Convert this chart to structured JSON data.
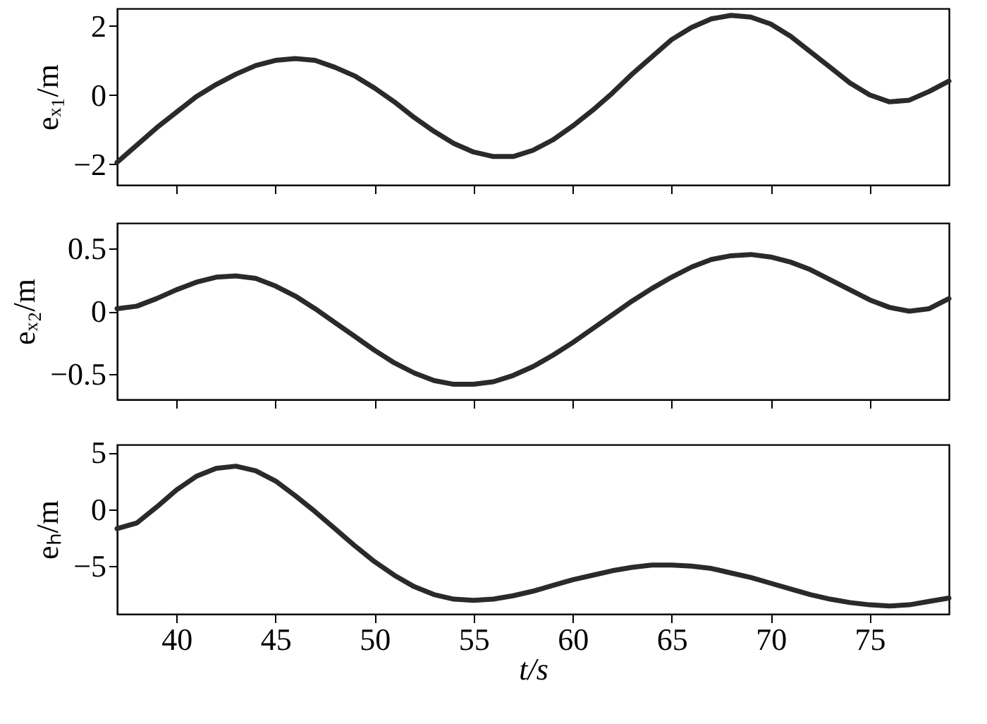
{
  "chart_data": [
    {
      "type": "line",
      "ylabel": "eₓ₁/m",
      "xlim": [
        37,
        79
      ],
      "xticks": [
        40,
        45,
        50,
        55,
        60,
        65,
        70,
        75
      ],
      "ylim": [
        -2.6,
        2.5
      ],
      "yticks": [
        -2,
        0,
        2
      ],
      "tick_labels": "y",
      "grid": false,
      "marker": "none",
      "line_style": "solid",
      "x": [
        37,
        38,
        39,
        40,
        41,
        42,
        43,
        44,
        45,
        46,
        47,
        48,
        49,
        50,
        51,
        52,
        53,
        54,
        55,
        56,
        57,
        58,
        59,
        60,
        61,
        62,
        63,
        64,
        65,
        66,
        67,
        68,
        69,
        70,
        71,
        72,
        73,
        74,
        75,
        76,
        77,
        78,
        79
      ],
      "series": [
        {
          "color": "#2a2a2a",
          "values": [
            -1.95,
            -1.45,
            -0.95,
            -0.5,
            -0.05,
            0.3,
            0.6,
            0.85,
            1.0,
            1.05,
            1.0,
            0.8,
            0.55,
            0.2,
            -0.2,
            -0.65,
            -1.05,
            -1.4,
            -1.65,
            -1.78,
            -1.78,
            -1.6,
            -1.3,
            -0.9,
            -0.45,
            0.05,
            0.6,
            1.1,
            1.6,
            1.95,
            2.2,
            2.3,
            2.25,
            2.05,
            1.7,
            1.25,
            0.8,
            0.35,
            0.0,
            -0.2,
            -0.15,
            0.1,
            0.4
          ]
        }
      ]
    },
    {
      "type": "line",
      "ylabel": "eₓ₂/m",
      "xlim": [
        37,
        79
      ],
      "xticks": [
        40,
        45,
        50,
        55,
        60,
        65,
        70,
        75
      ],
      "ylim": [
        -0.7,
        0.7
      ],
      "yticks": [
        -0.5,
        0,
        0.5
      ],
      "tick_labels": "y",
      "grid": false,
      "marker": "none",
      "line_style": "solid",
      "x": [
        37,
        38,
        39,
        40,
        41,
        42,
        43,
        44,
        45,
        46,
        47,
        48,
        49,
        50,
        51,
        52,
        53,
        54,
        55,
        56,
        57,
        58,
        59,
        60,
        61,
        62,
        63,
        64,
        65,
        66,
        67,
        68,
        69,
        70,
        71,
        72,
        73,
        74,
        75,
        76,
        77,
        78,
        79
      ],
      "series": [
        {
          "color": "#2a2a2a",
          "values": [
            0.02,
            0.04,
            0.1,
            0.17,
            0.23,
            0.27,
            0.28,
            0.26,
            0.2,
            0.12,
            0.02,
            -0.09,
            -0.2,
            -0.31,
            -0.41,
            -0.49,
            -0.55,
            -0.58,
            -0.58,
            -0.56,
            -0.51,
            -0.44,
            -0.35,
            -0.25,
            -0.14,
            -0.03,
            0.08,
            0.18,
            0.27,
            0.35,
            0.41,
            0.44,
            0.45,
            0.43,
            0.39,
            0.33,
            0.25,
            0.17,
            0.09,
            0.03,
            0.0,
            0.02,
            0.1
          ]
        }
      ]
    },
    {
      "type": "line",
      "ylabel": "eₕ/m",
      "xlabel": "t/s",
      "xlim": [
        37,
        79
      ],
      "xticks": [
        40,
        45,
        50,
        55,
        60,
        65,
        70,
        75
      ],
      "ylim": [
        -9.2,
        5.7
      ],
      "yticks": [
        -5,
        0,
        5
      ],
      "grid": false,
      "marker": "none",
      "line_style": "solid",
      "x": [
        37,
        38,
        39,
        40,
        41,
        42,
        43,
        44,
        45,
        46,
        47,
        48,
        49,
        50,
        51,
        52,
        53,
        54,
        55,
        56,
        57,
        58,
        59,
        60,
        61,
        62,
        63,
        64,
        65,
        66,
        67,
        68,
        69,
        70,
        71,
        72,
        73,
        74,
        75,
        76,
        77,
        78,
        79
      ],
      "series": [
        {
          "color": "#2a2a2a",
          "values": [
            -1.7,
            -1.2,
            0.2,
            1.7,
            2.9,
            3.6,
            3.8,
            3.4,
            2.5,
            1.2,
            -0.2,
            -1.7,
            -3.2,
            -4.6,
            -5.8,
            -6.8,
            -7.5,
            -7.9,
            -8.0,
            -7.9,
            -7.6,
            -7.2,
            -6.7,
            -6.2,
            -5.8,
            -5.4,
            -5.1,
            -4.9,
            -4.9,
            -5.0,
            -5.2,
            -5.6,
            -6.0,
            -6.5,
            -7.0,
            -7.5,
            -7.9,
            -8.2,
            -8.4,
            -8.5,
            -8.4,
            -8.1,
            -7.8
          ]
        }
      ]
    }
  ]
}
